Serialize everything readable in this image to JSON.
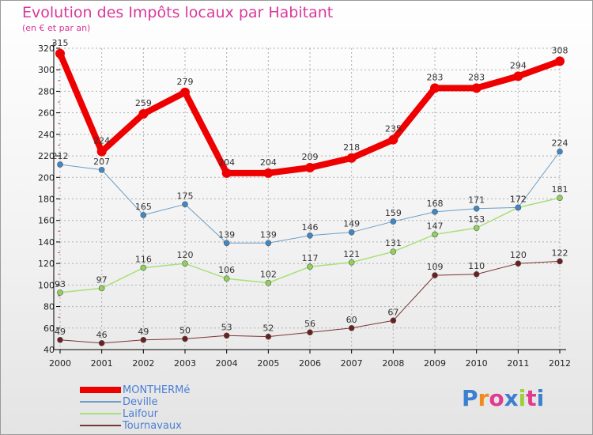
{
  "title": "Evolution des Impôts locaux par Habitant",
  "subtitle": "(en € et par an)",
  "logo_text": "Proxiti",
  "colors": {
    "title": "#d9399a",
    "axis": "#000000",
    "grid": "#b0b0b0",
    "legend_text": "#4a7fd6"
  },
  "chart_data": {
    "type": "line",
    "title": "Evolution des Impôts locaux par Habitant",
    "subtitle": "(en € et par an)",
    "xlabel": "",
    "ylabel": "",
    "ylim": [
      40,
      320
    ],
    "yticks": [
      40,
      60,
      80,
      100,
      120,
      140,
      160,
      180,
      200,
      220,
      240,
      260,
      280,
      300,
      320
    ],
    "grid": true,
    "legend_position": "bottom-left",
    "categories": [
      "2000",
      "2001",
      "2002",
      "2003",
      "2004",
      "2005",
      "2006",
      "2007",
      "2008",
      "2009",
      "2010",
      "2011",
      "2012"
    ],
    "series": [
      {
        "name": "MONTHERMé",
        "values": [
          315,
          224,
          259,
          279,
          204,
          204,
          209,
          218,
          235,
          283,
          283,
          294,
          308
        ],
        "color": "#ee0000",
        "marker": "#ee0000"
      },
      {
        "name": "Deville",
        "values": [
          212,
          207,
          165,
          175,
          139,
          139,
          146,
          149,
          159,
          168,
          171,
          172,
          224
        ],
        "color": "#6a9ec8",
        "marker": "#3f88c5"
      },
      {
        "name": "Laifour",
        "values": [
          93,
          97,
          116,
          120,
          106,
          102,
          117,
          121,
          131,
          147,
          153,
          172,
          181
        ],
        "color": "#a8e07a",
        "marker": "#8fd25c"
      },
      {
        "name": "Tournavaux",
        "values": [
          49,
          46,
          49,
          50,
          53,
          52,
          56,
          60,
          67,
          109,
          110,
          120,
          122
        ],
        "color": "#7a3535",
        "marker": "#6b1f1f"
      }
    ]
  }
}
